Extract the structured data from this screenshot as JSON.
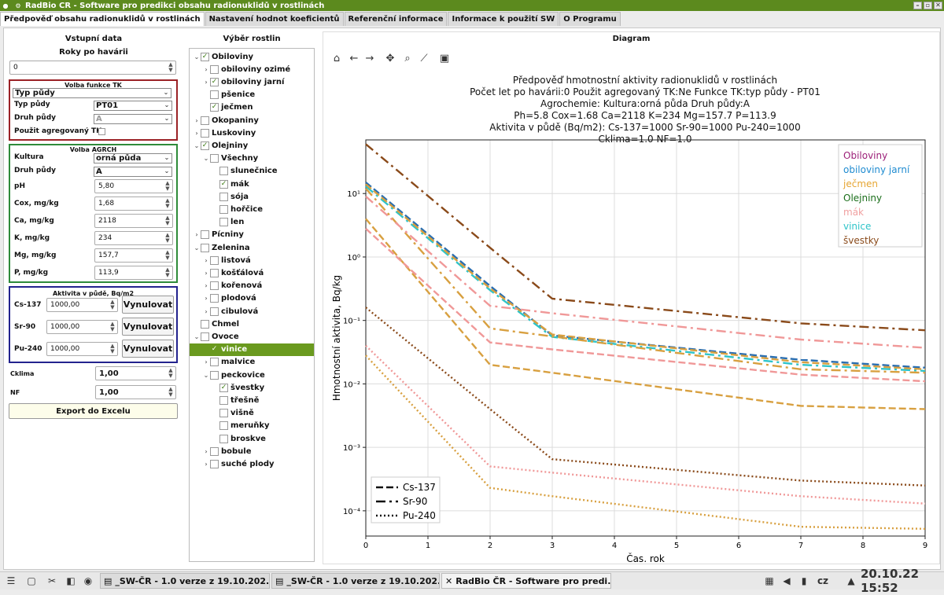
{
  "window": {
    "title": "RadBio ČR - Software pro predikci obsahu radionuklidů v rostlinách"
  },
  "tabs": [
    {
      "label": "Předpověď obsahu radionuklidů v rostlinách",
      "active": true
    },
    {
      "label": "Nastavení hodnot koeficientů",
      "active": false
    },
    {
      "label": "Referenční informace",
      "active": false
    },
    {
      "label": "Informace k použití SW",
      "active": false
    },
    {
      "label": "O Programu",
      "active": false
    }
  ],
  "input": {
    "heading": "Vstupní data",
    "years_label": "Roky po havárii",
    "years_value": "0",
    "tk": {
      "title": "Volba funkce TK",
      "combo_value": "Typ půdy",
      "soil_type_label": "Typ půdy",
      "soil_type_value": "PT01",
      "soil_kind_label": "Druh půdy",
      "soil_kind_value": "A",
      "aggregated_label": "Použit agregovaný TK"
    },
    "agrch": {
      "title": "Volba AGRCH",
      "culture_label": "Kultura",
      "culture_value": "orná půda",
      "soil_kind_label": "Druh půdy",
      "soil_kind_value": "A",
      "ph_label": "pH",
      "ph_value": "5,80",
      "cox_label": "Cox, mg/kg",
      "cox_value": "1,68",
      "ca_label": "Ca, mg/kg",
      "ca_value": "2118",
      "k_label": "K, mg/kg",
      "k_value": "234",
      "mg_label": "Mg, mg/kg",
      "mg_value": "157,7",
      "p_label": "P, mg/kg",
      "p_value": "113,9"
    },
    "activity": {
      "title": "Aktivita v půdě, Bq/m2",
      "cs_label": "Cs-137",
      "cs_value": "1000,00",
      "sr_label": "Sr-90",
      "sr_value": "1000,00",
      "pu_label": "Pu-240",
      "pu_value": "1000,00",
      "reset_label": "Vynulovat"
    },
    "cklima_label": "Cklima",
    "cklima_value": "1,00",
    "nf_label": "NF",
    "nf_value": "1,00",
    "export_label": "Export do Excelu"
  },
  "plants": {
    "heading": "Výběr rostlin",
    "nodes": [
      {
        "label": "Obiloviny",
        "level": 0,
        "expand": "v",
        "checked": true
      },
      {
        "label": "obiloviny ozimé",
        "level": 1,
        "expand": ">",
        "checked": false
      },
      {
        "label": "obiloviny jarní",
        "level": 1,
        "expand": ">",
        "checked": true
      },
      {
        "label": "pšenice",
        "level": 1,
        "expand": "",
        "checked": false
      },
      {
        "label": "ječmen",
        "level": 1,
        "expand": "",
        "checked": true
      },
      {
        "label": "Okopaniny",
        "level": 0,
        "expand": ">",
        "checked": false
      },
      {
        "label": "Luskoviny",
        "level": 0,
        "expand": ">",
        "checked": false
      },
      {
        "label": "Olejniny",
        "level": 0,
        "expand": "v",
        "checked": true
      },
      {
        "label": "Všechny",
        "level": 1,
        "expand": "v",
        "checked": false
      },
      {
        "label": "slunečnice",
        "level": 2,
        "expand": "",
        "checked": false
      },
      {
        "label": "mák",
        "level": 2,
        "expand": "",
        "checked": true
      },
      {
        "label": "sója",
        "level": 2,
        "expand": "",
        "checked": false
      },
      {
        "label": "hořčice",
        "level": 2,
        "expand": "",
        "checked": false
      },
      {
        "label": "len",
        "level": 2,
        "expand": "",
        "checked": false
      },
      {
        "label": "Pícniny",
        "level": 0,
        "expand": ">",
        "checked": false
      },
      {
        "label": "Zelenina",
        "level": 0,
        "expand": "v",
        "checked": false
      },
      {
        "label": "listová",
        "level": 1,
        "expand": ">",
        "checked": false
      },
      {
        "label": "košťálová",
        "level": 1,
        "expand": ">",
        "checked": false
      },
      {
        "label": "kořenová",
        "level": 1,
        "expand": ">",
        "checked": false
      },
      {
        "label": "plodová",
        "level": 1,
        "expand": ">",
        "checked": false
      },
      {
        "label": "cibulová",
        "level": 1,
        "expand": ">",
        "checked": false
      },
      {
        "label": "Chmel",
        "level": 0,
        "expand": "",
        "checked": false
      },
      {
        "label": "Ovoce",
        "level": 0,
        "expand": "v",
        "checked": false
      },
      {
        "label": "vinice",
        "level": 1,
        "expand": "",
        "checked": true,
        "selected": true
      },
      {
        "label": "malvice",
        "level": 1,
        "expand": ">",
        "checked": false
      },
      {
        "label": "peckovice",
        "level": 1,
        "expand": "v",
        "checked": false
      },
      {
        "label": "švestky",
        "level": 2,
        "expand": "",
        "checked": true
      },
      {
        "label": "třešně",
        "level": 2,
        "expand": "",
        "checked": false
      },
      {
        "label": "višně",
        "level": 2,
        "expand": "",
        "checked": false
      },
      {
        "label": "meruňky",
        "level": 2,
        "expand": "",
        "checked": false
      },
      {
        "label": "broskve",
        "level": 2,
        "expand": "",
        "checked": false
      },
      {
        "label": "bobule",
        "level": 1,
        "expand": ">",
        "checked": false
      },
      {
        "label": "suché plody",
        "level": 1,
        "expand": ">",
        "checked": false
      }
    ]
  },
  "diagram": {
    "heading": "Diagram",
    "toolbar_icons": [
      "home-icon",
      "back-arrow-icon",
      "forward-arrow-icon",
      "pan-icon",
      "zoom-icon",
      "subplots-icon",
      "save-icon"
    ]
  },
  "chart_data": {
    "type": "line",
    "title_lines": [
      "Předpověď hmotnostní aktivity radionuklidů v rostlinách",
      "Počet let po havárii:0     Použit agregovaný TK:Ne     Funkce TK:typ půdy - PT01",
      "Agrochemie: Kultura:orná půda          Druh půdy:A",
      "Ph=5.8      Cox=1.68      Ca=2118      K=234        Mg=157.7     P=113.9",
      "Aktivita v půdě (Bq/m2): Cs-137=1000              Sr-90=1000              Pu-240=1000",
      "Cklima=1.0        NF=1.0"
    ],
    "xlabel": "Čas, rok",
    "ylabel": "Hmotnostní aktivita, Bq/kg",
    "xlim": [
      0,
      9
    ],
    "ylim": [
      4e-05,
      70
    ],
    "yscale": "log",
    "x_ticks": [
      0,
      1,
      2,
      3,
      4,
      5,
      6,
      7,
      8,
      9
    ],
    "y_ticks": [
      {
        "value": 0.0001,
        "label": "10⁻⁴"
      },
      {
        "value": 0.001,
        "label": "10⁻³"
      },
      {
        "value": 0.01,
        "label": "10⁻²"
      },
      {
        "value": 0.1,
        "label": "10⁻¹"
      },
      {
        "value": 1,
        "label": "10⁰"
      },
      {
        "value": 10,
        "label": "10¹"
      }
    ],
    "grid": true,
    "x": [
      0,
      2,
      3,
      7,
      9
    ],
    "plants_legend": [
      {
        "name": "Obiloviny",
        "color": "#9c1f78"
      },
      {
        "name": "obiloviny jarní",
        "color": "#1f8bd0"
      },
      {
        "name": "ječmen",
        "color": "#e6a532"
      },
      {
        "name": "Olejniny",
        "color": "#1a6e1a"
      },
      {
        "name": "mák",
        "color": "#f0a0a0"
      },
      {
        "name": "vinice",
        "color": "#2ec4c9"
      },
      {
        "name": "švestky",
        "color": "#8a4a1a"
      }
    ],
    "nuclides_legend": [
      {
        "name": "Cs-137",
        "dash": "dashed"
      },
      {
        "name": "Sr-90",
        "dash": "dashdot"
      },
      {
        "name": "Pu-240",
        "dash": "dotted"
      }
    ],
    "series": [
      {
        "plant": "švestky",
        "nuclide": "Sr-90",
        "color": "#8a4a1a",
        "dash": "dashdot",
        "values": [
          60,
          1.4,
          0.22,
          0.09,
          0.07
        ]
      },
      {
        "plant": "obiloviny jarní",
        "nuclide": "Cs-137",
        "color": "#2a6eb0",
        "dash": "dashed",
        "values": [
          15,
          0.35,
          0.058,
          0.024,
          0.018
        ]
      },
      {
        "plant": "vinice",
        "nuclide": "Sr-90",
        "color": "#2ec4c9",
        "dash": "dashdot",
        "values": [
          13,
          0.3,
          0.055,
          0.02,
          0.016
        ]
      },
      {
        "plant": "ječmen",
        "nuclide": "Cs-137",
        "color": "#d8a040",
        "dash": "dashed",
        "values": [
          14,
          0.32,
          0.06,
          0.022,
          0.017
        ]
      },
      {
        "plant": "ječmen",
        "nuclide": "Sr-90",
        "color": "#d8a040",
        "dash": "dashdot",
        "values": [
          12,
          0.075,
          0.056,
          0.017,
          0.015
        ]
      },
      {
        "plant": "ječmen",
        "nuclide": "Cs-137",
        "color": "#d8a040",
        "dash": "dashed",
        "values": [
          4,
          0.02,
          0.015,
          0.0045,
          0.004
        ]
      },
      {
        "plant": "mák",
        "nuclide": "Sr-90",
        "color": "#f09898",
        "dash": "dashdot",
        "values": [
          9,
          0.17,
          0.13,
          0.05,
          0.037
        ]
      },
      {
        "plant": "mák",
        "nuclide": "Cs-137",
        "color": "#f09898",
        "dash": "dashed",
        "values": [
          2.8,
          0.045,
          0.035,
          0.014,
          0.011
        ]
      },
      {
        "plant": "švestky",
        "nuclide": "Pu-240",
        "color": "#8a4a1a",
        "dash": "dotted",
        "values": [
          0.16,
          0.004,
          0.00065,
          0.0003,
          0.00025
        ]
      },
      {
        "plant": "mák",
        "nuclide": "Pu-240",
        "color": "#f09898",
        "dash": "dotted",
        "values": [
          0.04,
          0.0005,
          0.0004,
          0.00017,
          0.00013
        ]
      },
      {
        "plant": "ječmen",
        "nuclide": "Pu-240",
        "color": "#d8a040",
        "dash": "dotted",
        "values": [
          0.028,
          0.00023,
          0.00017,
          5.6e-05,
          5.2e-05
        ]
      }
    ]
  },
  "taskbar": {
    "tasks": [
      {
        "label": "_SW-ČR - 1.0 verze z 19.10.202...",
        "active": false
      },
      {
        "label": "_SW-ČR - 1.0 verze z 19.10.202...",
        "active": false
      },
      {
        "label": "RadBio ČR - Software pro predi...",
        "active": true
      }
    ],
    "lang": "cz",
    "datetime": "20.10.22 15:52"
  }
}
